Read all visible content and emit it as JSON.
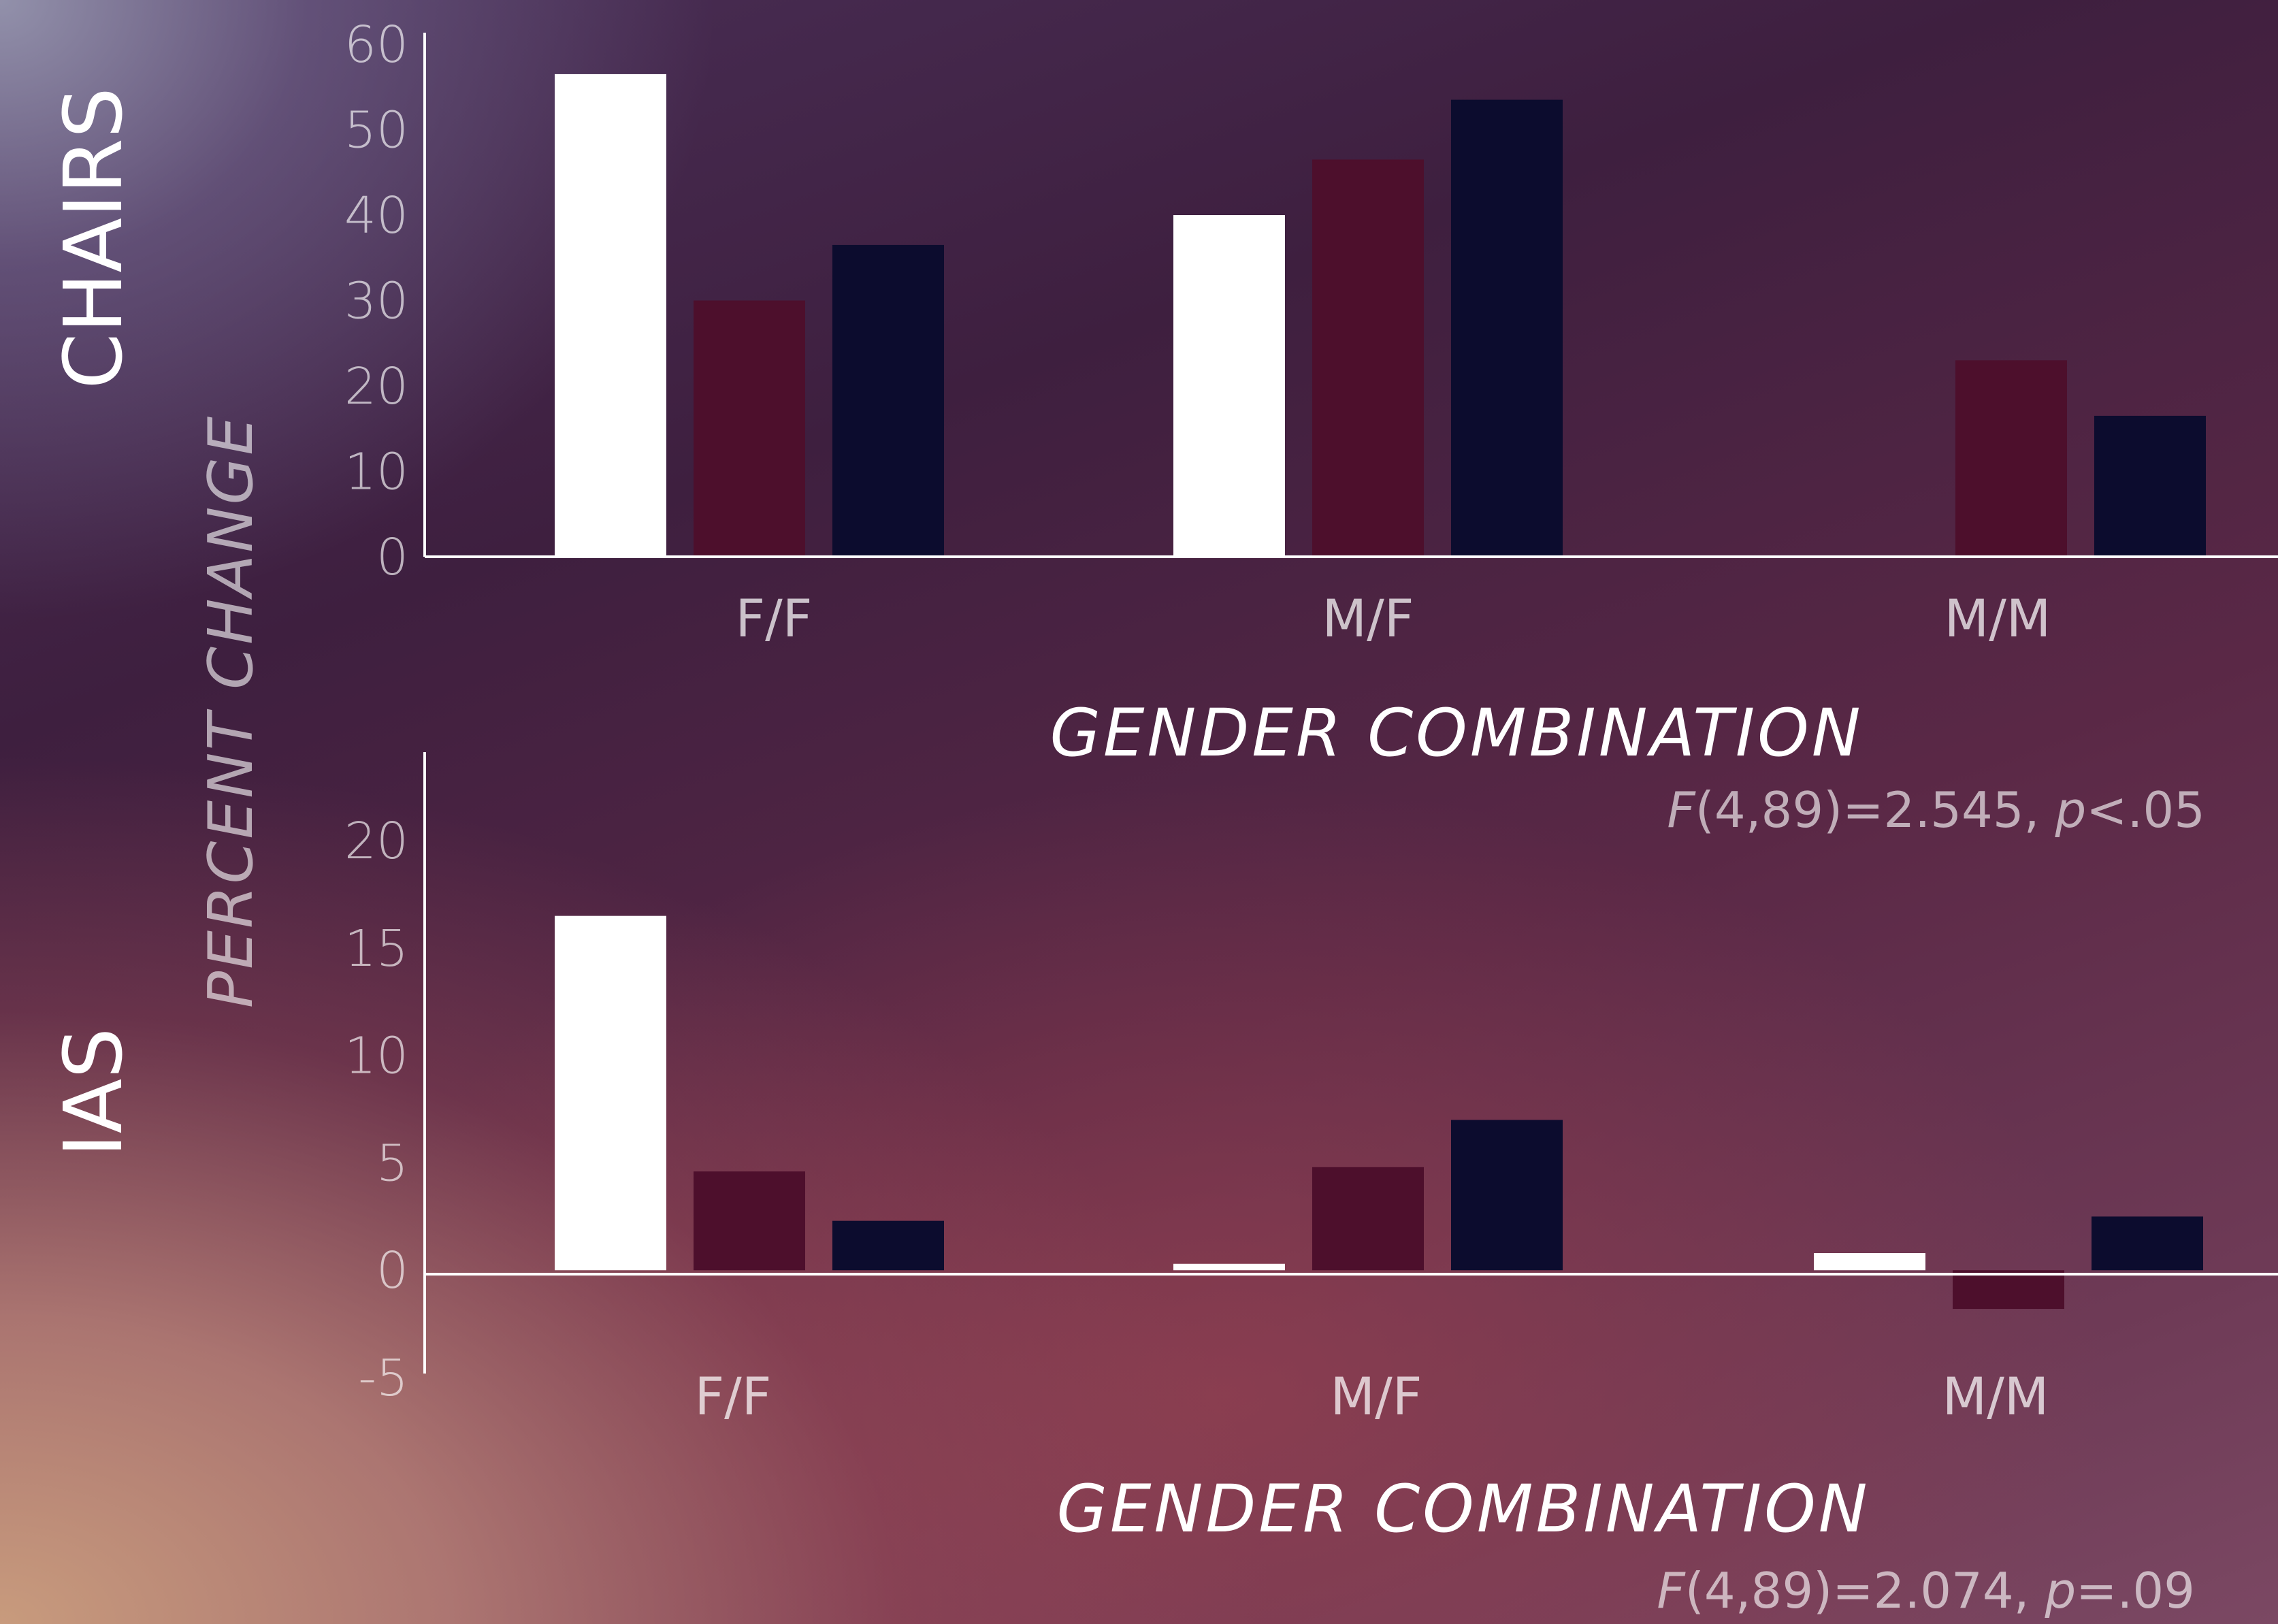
{
  "y_axis_label": "PERCENT CHANGE",
  "colors": {
    "series_1": "#ffffff",
    "series_2": "#4d0f2c",
    "series_3": "#0c0c2e"
  },
  "chart_data": [
    {
      "type": "bar",
      "panel_label": "CHAIRS",
      "categories": [
        "F/F",
        "M/F",
        "M/M"
      ],
      "series": [
        {
          "values": [
            56.5,
            40,
            0
          ]
        },
        {
          "values": [
            30,
            46.5,
            23
          ]
        },
        {
          "values": [
            36.5,
            53.5,
            16.5
          ]
        }
      ],
      "xlabel": "GENDER COMBINATION",
      "ylabel": "PERCENT CHANGE",
      "ylim": [
        0,
        60
      ],
      "yticks": [
        0,
        10,
        20,
        30,
        40,
        50,
        60
      ],
      "stat_prefix": "F",
      "stat_args": "(4,89)=2.545, ",
      "stat_p": "p",
      "stat_rest": "<.05",
      "grid": false,
      "legend": "none"
    },
    {
      "type": "bar",
      "panel_label": "IAS",
      "categories": [
        "F/F",
        "M/F",
        "M/M"
      ],
      "series": [
        {
          "values": [
            16.5,
            0.3,
            0.8
          ]
        },
        {
          "values": [
            4.6,
            4.8,
            -1.8
          ]
        },
        {
          "values": [
            2.3,
            7,
            2.5
          ]
        }
      ],
      "xlabel": "GENDER COMBINATION",
      "ylabel": "PERCENT CHANGE",
      "ylim": [
        -5,
        24
      ],
      "yticks": [
        -5,
        0,
        5,
        10,
        15,
        20
      ],
      "stat_prefix": "F",
      "stat_args": "(4,89)=2.074, ",
      "stat_p": "p",
      "stat_rest": "=.09",
      "grid": false,
      "legend": "none"
    }
  ]
}
